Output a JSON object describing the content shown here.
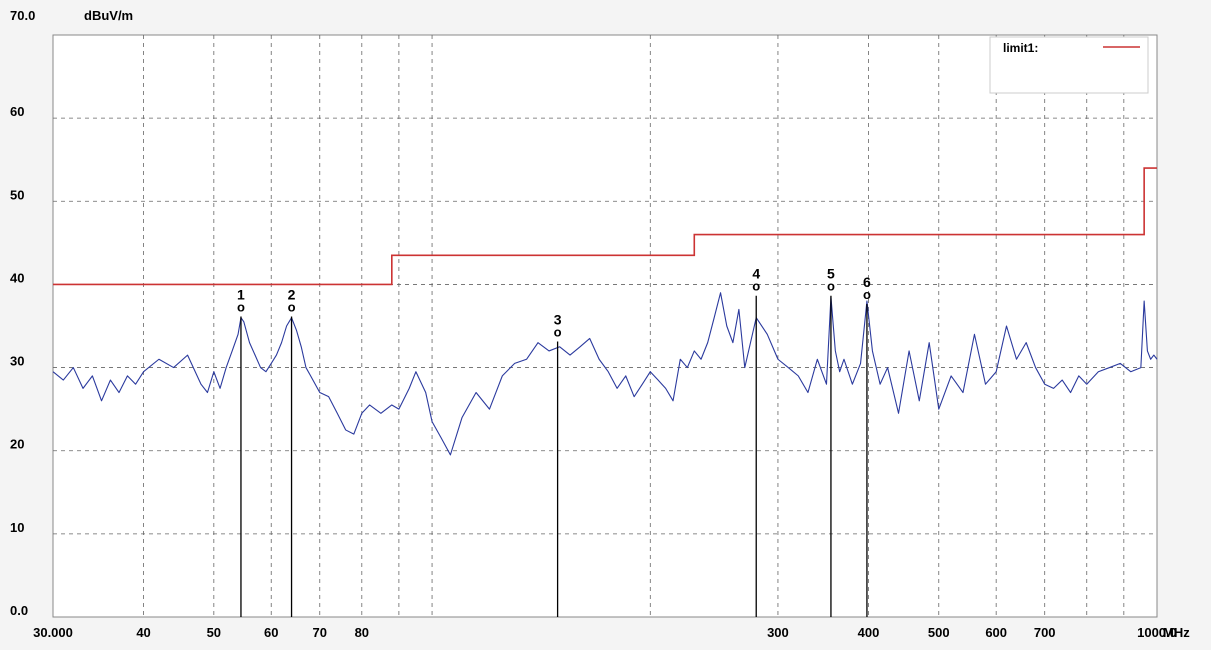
{
  "chart_data": {
    "type": "line",
    "title": "",
    "xlabel": "MHz",
    "ylabel": "dBuV/m",
    "x_scale": "log",
    "xlim": [
      30,
      1000
    ],
    "ylim": [
      0,
      70
    ],
    "grid": true,
    "legend_position": "top-right",
    "x_ticks": [
      {
        "value": 30,
        "label": "30.000"
      },
      {
        "value": 40,
        "label": "40"
      },
      {
        "value": 50,
        "label": "50"
      },
      {
        "value": 60,
        "label": "60"
      },
      {
        "value": 70,
        "label": "70"
      },
      {
        "value": 80,
        "label": "80"
      },
      {
        "value": 300,
        "label": "300"
      },
      {
        "value": 400,
        "label": "400"
      },
      {
        "value": 500,
        "label": "500"
      },
      {
        "value": 600,
        "label": "600"
      },
      {
        "value": 700,
        "label": "700"
      },
      {
        "value": 1000,
        "label": "1000.0"
      }
    ],
    "x_grid": [
      30,
      40,
      50,
      60,
      70,
      80,
      90,
      100,
      200,
      300,
      400,
      500,
      600,
      700,
      800,
      900,
      1000
    ],
    "y_ticks": [
      {
        "value": 0,
        "label": "0.0"
      },
      {
        "value": 10,
        "label": "10"
      },
      {
        "value": 20,
        "label": "20"
      },
      {
        "value": 30,
        "label": "30"
      },
      {
        "value": 40,
        "label": "40"
      },
      {
        "value": 50,
        "label": "50"
      },
      {
        "value": 60,
        "label": "60"
      },
      {
        "value": 70,
        "label": "70.0"
      }
    ],
    "series": [
      {
        "name": "",
        "color": "#2b3a9e",
        "x": [
          30,
          31,
          32,
          33,
          34,
          35,
          36,
          37,
          38,
          39,
          40,
          42,
          44,
          46,
          48,
          49,
          50,
          51,
          52,
          53,
          54,
          54.5,
          55,
          56,
          57,
          58,
          59,
          60,
          61,
          62,
          63,
          64,
          65,
          66,
          67,
          68,
          70,
          72,
          74,
          76,
          78,
          80,
          82,
          85,
          88,
          90,
          93,
          95,
          98,
          100,
          103,
          106,
          110,
          115,
          120,
          125,
          130,
          135,
          140,
          145,
          150,
          155,
          160,
          165,
          170,
          175,
          180,
          185,
          190,
          195,
          200,
          205,
          210,
          215,
          220,
          225,
          230,
          235,
          240,
          245,
          250,
          255,
          260,
          265,
          270,
          280,
          290,
          300,
          310,
          320,
          330,
          340,
          350,
          355,
          360,
          365,
          370,
          380,
          390,
          398,
          405,
          415,
          425,
          440,
          455,
          470,
          485,
          500,
          520,
          540,
          560,
          580,
          600,
          620,
          640,
          660,
          680,
          700,
          720,
          740,
          760,
          780,
          800,
          830,
          860,
          890,
          920,
          950,
          960,
          970,
          980,
          990,
          1000
        ],
        "values": [
          29.5,
          28.5,
          30,
          27.5,
          29,
          26,
          28.5,
          27,
          29,
          28,
          29.5,
          31,
          30,
          31.5,
          28,
          27,
          29.5,
          27.5,
          30,
          32,
          34,
          36,
          35.5,
          33,
          31.5,
          30,
          29.5,
          30.5,
          31.5,
          33,
          35,
          36,
          34.5,
          32.5,
          30,
          29,
          27,
          26.5,
          24.5,
          22.5,
          22,
          24.5,
          25.5,
          24.5,
          25.5,
          25,
          27.5,
          29.5,
          27,
          23.5,
          21.5,
          19.5,
          24,
          27,
          25,
          29,
          30.5,
          31,
          33,
          32,
          32.5,
          31.5,
          32.5,
          33.5,
          31,
          29.5,
          27.5,
          29,
          26.5,
          28,
          29.5,
          28.5,
          27.5,
          26,
          31,
          30,
          32,
          31,
          33,
          36,
          39,
          35,
          33,
          37,
          30,
          36,
          34,
          31,
          30,
          29,
          27,
          31,
          28,
          38.5,
          32,
          29.5,
          31,
          28,
          30.5,
          38,
          32,
          28,
          30,
          24.5,
          32,
          26,
          33,
          25,
          29,
          27,
          34,
          28,
          29.5,
          35,
          31,
          33,
          30,
          28,
          27.5,
          28.5,
          27,
          29,
          28,
          29.5,
          30,
          30.5,
          29.5,
          30,
          38,
          32,
          31,
          31.5,
          31
        ]
      }
    ],
    "limit": {
      "name": "limit1:",
      "color": "#cc3333",
      "points": [
        [
          30,
          40
        ],
        [
          88,
          40
        ],
        [
          88,
          43.5
        ],
        [
          230,
          43.5
        ],
        [
          230,
          46
        ],
        [
          960,
          46
        ],
        [
          960,
          54
        ],
        [
          1000,
          54
        ]
      ]
    },
    "markers": [
      {
        "label": "1",
        "x": 54.5,
        "y": 36.5,
        "symbol": "o"
      },
      {
        "label": "2",
        "x": 64,
        "y": 36.5,
        "symbol": "o"
      },
      {
        "label": "3",
        "x": 149,
        "y": 33.5,
        "symbol": "o"
      },
      {
        "label": "4",
        "x": 280,
        "y": 39,
        "symbol": "o"
      },
      {
        "label": "5",
        "x": 355,
        "y": 39,
        "symbol": "o"
      },
      {
        "label": "6",
        "x": 398,
        "y": 38,
        "symbol": "o"
      }
    ]
  }
}
